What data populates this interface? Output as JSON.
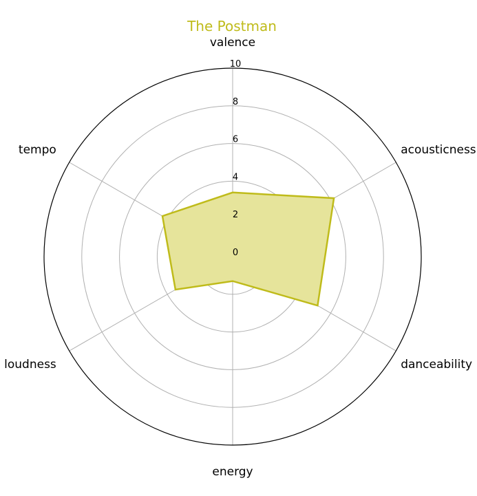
{
  "chart_data": {
    "type": "radar",
    "title": "The Postman",
    "axes": [
      "valence",
      "acousticness",
      "danceability",
      "energy",
      "loudness",
      "tempo"
    ],
    "series": [
      {
        "name": "The Postman",
        "values": [
          3.4,
          6.2,
          5.2,
          1.3,
          3.5,
          4.3
        ]
      }
    ],
    "rlim": [
      0,
      10
    ],
    "rticks": [
      0,
      2,
      4,
      6,
      8,
      10
    ],
    "grid": true,
    "colors": {
      "series": "#bfbb1a",
      "fill": "#e6e49b",
      "grid": "#b0b0b0",
      "title": "#bfbb1a",
      "frame": "#000000"
    }
  }
}
